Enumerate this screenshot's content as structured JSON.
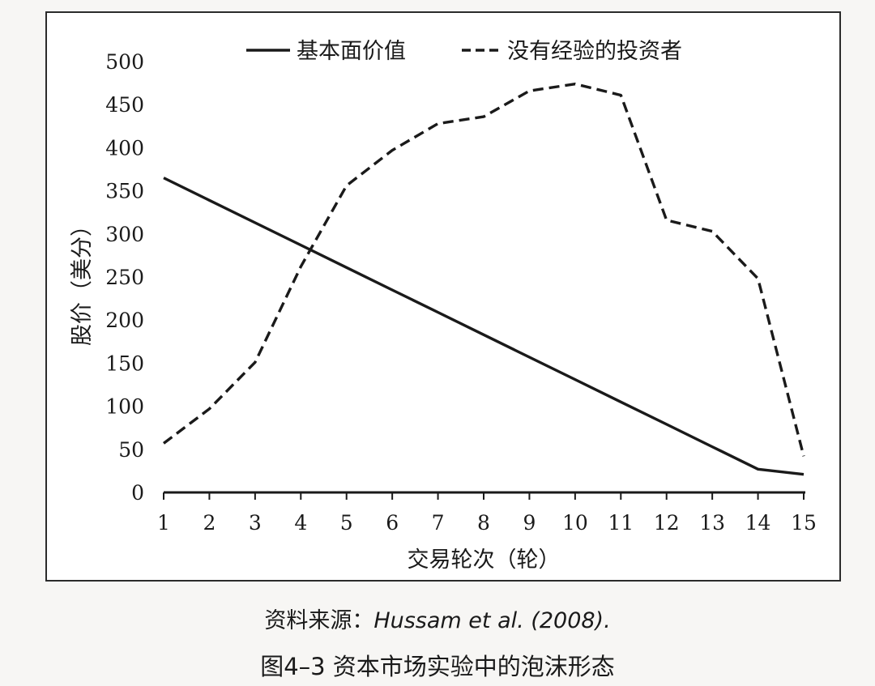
{
  "chart_data": {
    "type": "line",
    "x": [
      1,
      2,
      3,
      4,
      5,
      6,
      7,
      8,
      9,
      10,
      11,
      12,
      13,
      14,
      15
    ],
    "xlabel": "交易轮次（轮）",
    "ylabel": "股价（美分）",
    "xlim": [
      1,
      15
    ],
    "ylim": [
      0,
      500
    ],
    "yticks": [
      0,
      50,
      100,
      150,
      200,
      250,
      300,
      350,
      400,
      450,
      500
    ],
    "grid": false,
    "legend_position": "top",
    "series": [
      {
        "name": "基本面价值",
        "style": "solid",
        "color": "#1a1a1a",
        "values": [
          365,
          339,
          313,
          287,
          261,
          235,
          209,
          183,
          157,
          131,
          105,
          79,
          53,
          27,
          21
        ]
      },
      {
        "name": "没有经验的投资者",
        "style": "dashed",
        "color": "#1a1a1a",
        "values": [
          57,
          97,
          151,
          262,
          356,
          397,
          428,
          436,
          466,
          474,
          461,
          316,
          303,
          248,
          42
        ]
      }
    ]
  },
  "caption": {
    "source_prefix": "资料来源：",
    "source_citation": "Hussam et al. (2008).",
    "figure_title": "图4–3 资本市场实验中的泡沫形态"
  }
}
